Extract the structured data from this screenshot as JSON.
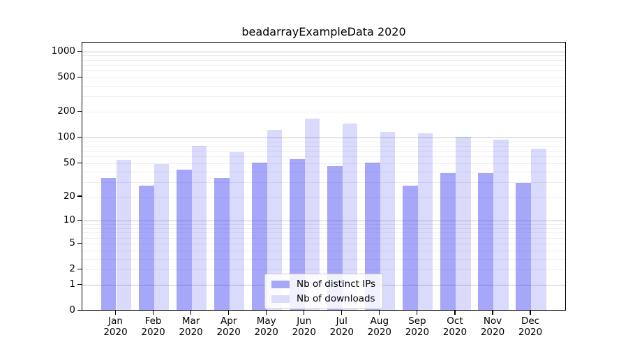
{
  "chart_data": {
    "type": "bar",
    "title": "beadarrayExampleData 2020",
    "categories": [
      "Jan",
      "Feb",
      "Mar",
      "Apr",
      "May",
      "Jun",
      "Jul",
      "Aug",
      "Sep",
      "Oct",
      "Nov",
      "Dec"
    ],
    "x_tick_second_line": "2020",
    "series": [
      {
        "name": "Nb of distinct IPs",
        "color": "#a7a7f8",
        "fill": "rgba(60,60,242,0.45)",
        "values": [
          33,
          27,
          42,
          33,
          51,
          56,
          46,
          51,
          27,
          38,
          38,
          29
        ]
      },
      {
        "name": "Nb of downloads",
        "color": "#dbdbfc",
        "fill": "rgba(60,60,242,0.19)",
        "values": [
          54,
          49,
          79,
          67,
          123,
          165,
          145,
          115,
          111,
          101,
          94,
          74
        ]
      }
    ],
    "yscale": "log1p",
    "yticks": [
      0,
      1,
      2,
      5,
      10,
      20,
      50,
      100,
      200,
      500,
      1000
    ],
    "ylim": [
      0,
      1270
    ],
    "xlabel": "",
    "ylabel": "",
    "grid": "horizontal",
    "legend_position": "lower center"
  },
  "colors": {
    "background": "#ffffff",
    "spine": "#000000",
    "major_grid": "#c4c4c4",
    "minor_grid": "#eeeeee",
    "text": "#000000",
    "legend_border": "#cbcbcb"
  }
}
